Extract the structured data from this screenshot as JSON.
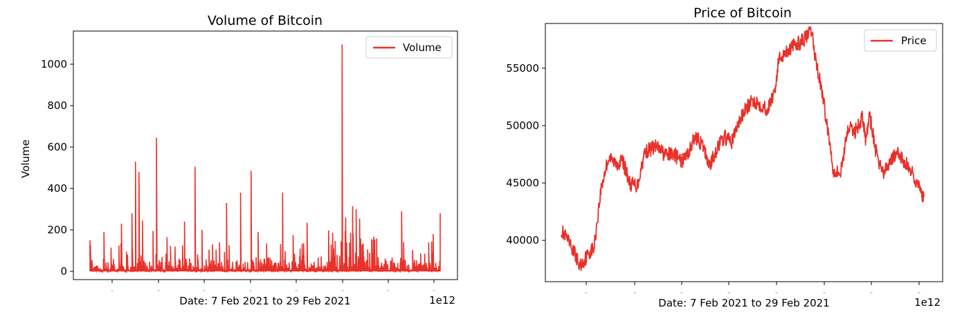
{
  "charts": [
    {
      "title": "Volume of Bitcoin",
      "ylabel": "Volume",
      "xlabel": "Date: 7 Feb 2021 to 29 Feb 2021",
      "offset_text": "1e12",
      "legend_label": "Volume",
      "yticks": [
        "0",
        "200",
        "400",
        "600",
        "800",
        "1000"
      ]
    },
    {
      "title": "Price of Bitcoin",
      "ylabel": "",
      "xlabel": "Date: 7 Feb 2021 to 29 Feb 2021",
      "offset_text": "1e12",
      "legend_label": "Price",
      "yticks": [
        "40000",
        "45000",
        "50000",
        "55000"
      ]
    }
  ],
  "chart_data": [
    {
      "type": "line",
      "title": "Volume of Bitcoin",
      "xlabel": "Date: 7 Feb 2021 to 29 Feb 2021",
      "ylabel": "Volume",
      "x_offset_text": "1e12",
      "ylim": [
        -40,
        1160
      ],
      "yticks": [
        0,
        200,
        400,
        600,
        800,
        1000
      ],
      "legend": "top-right",
      "grid": false,
      "color": "#e8312a",
      "series": [
        {
          "name": "Volume",
          "x_fraction": [
            0.0,
            0.04,
            0.06,
            0.09,
            0.12,
            0.13,
            0.14,
            0.15,
            0.18,
            0.19,
            0.22,
            0.27,
            0.3,
            0.32,
            0.35,
            0.39,
            0.43,
            0.46,
            0.48,
            0.55,
            0.58,
            0.62,
            0.72,
            0.73,
            0.75,
            0.76,
            0.77,
            0.89,
            0.98,
            1.0
          ],
          "y_peaks": [
            150,
            190,
            115,
            230,
            280,
            530,
            480,
            245,
            195,
            645,
            165,
            240,
            505,
            200,
            130,
            330,
            380,
            485,
            190,
            380,
            175,
            235,
            1095,
            260,
            315,
            300,
            255,
            290,
            180,
            280
          ]
        }
      ]
    },
    {
      "type": "line",
      "title": "Price of Bitcoin",
      "xlabel": "Date: 7 Feb 2021 to 29 Feb 2021",
      "ylabel": "",
      "x_offset_text": "1e12",
      "ylim": [
        36400,
        58900
      ],
      "yticks": [
        40000,
        45000,
        50000,
        55000
      ],
      "legend": "top-right",
      "grid": false,
      "color": "#e8312a",
      "series": [
        {
          "name": "Price",
          "x_fraction": [
            0.0,
            0.02,
            0.04,
            0.05,
            0.07,
            0.08,
            0.09,
            0.11,
            0.13,
            0.15,
            0.17,
            0.19,
            0.21,
            0.23,
            0.26,
            0.29,
            0.31,
            0.33,
            0.35,
            0.37,
            0.39,
            0.41,
            0.43,
            0.45,
            0.47,
            0.49,
            0.51,
            0.53,
            0.55,
            0.57,
            0.59,
            0.6,
            0.62,
            0.64,
            0.66,
            0.68,
            0.69,
            0.7,
            0.72,
            0.74,
            0.75,
            0.77,
            0.79,
            0.81,
            0.83,
            0.84,
            0.85,
            0.86,
            0.87,
            0.89,
            0.91,
            0.93,
            0.95,
            0.97,
            0.99,
            1.0
          ],
          "y": [
            40900,
            39800,
            38700,
            37700,
            38600,
            39100,
            39300,
            44600,
            47200,
            46700,
            46900,
            44900,
            44800,
            47700,
            48200,
            47400,
            47600,
            46800,
            47600,
            49100,
            48200,
            46500,
            48100,
            49000,
            48600,
            50300,
            51500,
            52200,
            51800,
            51400,
            53300,
            55800,
            56500,
            56900,
            57300,
            57800,
            58300,
            56000,
            52800,
            48500,
            46200,
            45800,
            49800,
            49500,
            50700,
            48700,
            50900,
            49200,
            47300,
            45800,
            47200,
            47500,
            46700,
            45800,
            44300,
            43600
          ]
        }
      ]
    }
  ]
}
